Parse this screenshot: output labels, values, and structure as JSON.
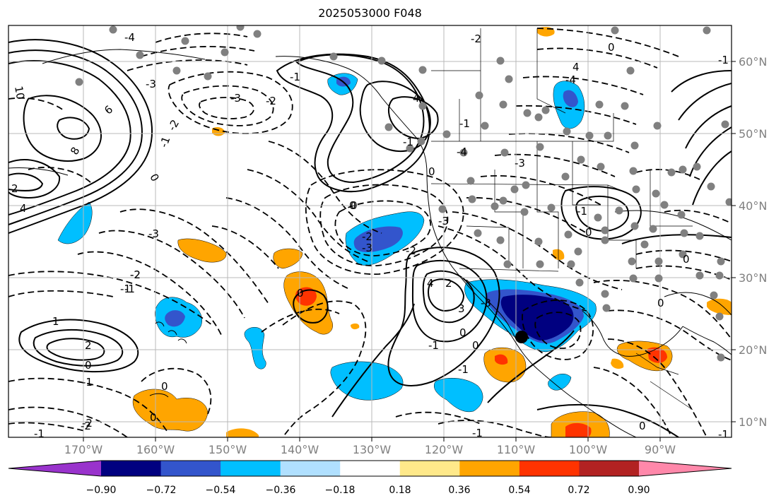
{
  "title": "2025053000 F048",
  "lon_labels": [
    "170°W",
    "160°W",
    "150°W",
    "140°W",
    "130°W",
    "120°W",
    "110°W",
    "100°W",
    "90°W"
  ],
  "lat_labels": [
    "60°N",
    "50°N",
    "40°N",
    "30°N",
    "20°N",
    "10°N"
  ],
  "colorbar": {
    "colors": [
      "#9933cc",
      "#000080",
      "#3355cc",
      "#00bfff",
      "#b0e0ff",
      "#ffffff",
      "#ffe98a",
      "#ffa500",
      "#ff3300",
      "#b22222",
      "#ff88aa"
    ],
    "labels": [
      "−0.90",
      "−0.72",
      "−0.54",
      "−0.36",
      "−0.18",
      "0.18",
      "0.36",
      "0.54",
      "0.72",
      "0.90"
    ]
  },
  "contour_labels": [
    "10",
    "8",
    "6",
    "4",
    "2",
    "0",
    "-1",
    "-2",
    "-3",
    "-4",
    "-1",
    "-2",
    "-3",
    "-3",
    "-2",
    "-1",
    "0",
    "4",
    "0",
    "-1",
    "-2",
    "-3",
    "-4",
    "-3",
    "-2",
    "-1",
    "0",
    "-1",
    "4",
    "-4",
    "-3",
    "-2",
    "0",
    "0",
    "1",
    "2",
    "-1",
    "0",
    "0",
    "0",
    "-1",
    "0",
    "-1",
    "-2",
    "0",
    "-1",
    "-2",
    "-2",
    "-1",
    "0",
    "2",
    "-3",
    "0",
    "4",
    "3",
    "-1",
    "0",
    "-1",
    "0",
    "-1"
  ],
  "marker": {
    "name": "point-of-interest",
    "lon": -109.2,
    "lat": 21.9
  }
}
